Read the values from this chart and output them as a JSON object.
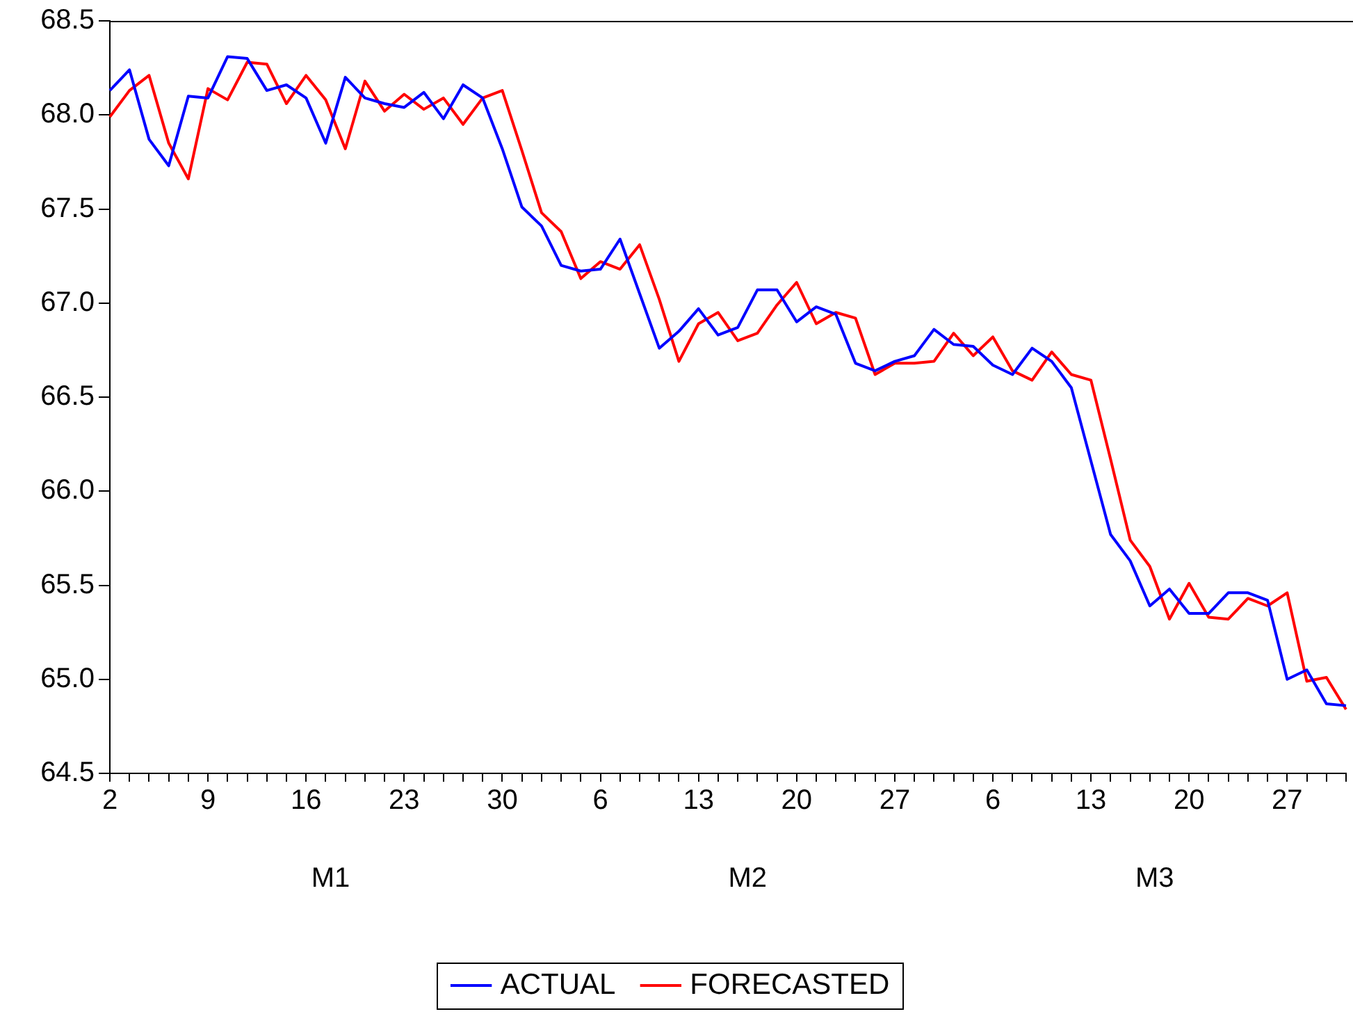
{
  "chart_data": {
    "type": "line",
    "categories": [
      "2",
      null,
      null,
      null,
      null,
      "9",
      null,
      null,
      null,
      null,
      "16",
      null,
      null,
      null,
      null,
      "23",
      null,
      null,
      null,
      null,
      "30",
      null,
      null,
      null,
      null,
      "6",
      null,
      null,
      null,
      null,
      "13",
      null,
      null,
      null,
      null,
      "20",
      null,
      null,
      null,
      null,
      "27",
      null,
      null,
      null,
      null,
      "6",
      null,
      null,
      null,
      null,
      "13",
      null,
      null,
      null,
      null,
      "20",
      null,
      null,
      null,
      null,
      "27",
      null,
      null,
      null
    ],
    "series": [
      {
        "name": "ACTUAL",
        "color": "#0000ff",
        "values": [
          68.13,
          68.24,
          67.87,
          67.73,
          68.1,
          68.09,
          68.31,
          68.3,
          68.13,
          68.16,
          68.09,
          67.85,
          68.2,
          68.09,
          68.06,
          68.04,
          68.12,
          67.98,
          68.16,
          68.09,
          67.82,
          67.51,
          67.41,
          67.2,
          67.17,
          67.18,
          67.34,
          67.05,
          66.76,
          66.85,
          66.97,
          66.83,
          66.87,
          67.07,
          67.07,
          66.9,
          66.98,
          66.94,
          66.68,
          66.64,
          66.69,
          66.72,
          66.86,
          66.78,
          66.77,
          66.67,
          66.62,
          66.76,
          66.69,
          66.55,
          66.16,
          65.77,
          65.63,
          65.39,
          65.48,
          65.35,
          65.35,
          65.46,
          65.46,
          65.42,
          65.0,
          65.05,
          64.87,
          64.86
        ]
      },
      {
        "name": "FORECASTED",
        "color": "#ff0000",
        "values": [
          67.99,
          68.13,
          68.21,
          67.85,
          67.66,
          68.14,
          68.08,
          68.28,
          68.27,
          68.06,
          68.21,
          68.08,
          67.82,
          68.18,
          68.02,
          68.11,
          68.03,
          68.09,
          67.95,
          68.09,
          68.13,
          67.81,
          67.48,
          67.38,
          67.13,
          67.22,
          67.18,
          67.31,
          67.02,
          66.69,
          66.89,
          66.95,
          66.8,
          66.84,
          66.99,
          67.11,
          66.89,
          66.95,
          66.92,
          66.62,
          66.68,
          66.68,
          66.69,
          66.84,
          66.72,
          66.82,
          66.64,
          66.59,
          66.74,
          66.62,
          66.59,
          66.17,
          65.74,
          65.6,
          65.32,
          65.51,
          65.33,
          65.32,
          65.43,
          65.39,
          65.46,
          64.99,
          65.01,
          64.84
        ]
      }
    ],
    "ylim": [
      64.5,
      68.5
    ],
    "yticks": [
      64.5,
      {
        "value": 65,
        "label": "65.0"
      },
      65.5,
      {
        "value": 66,
        "label": "66.0"
      },
      66.5,
      {
        "value": 67,
        "label": "67.0"
      },
      67.5,
      {
        "value": 68,
        "label": "68.0"
      },
      68.5
    ],
    "annotations": [
      "M1",
      "M2",
      "M3"
    ],
    "grid": false,
    "legend": "bottom",
    "marker": "none",
    "line_style": "solid"
  }
}
